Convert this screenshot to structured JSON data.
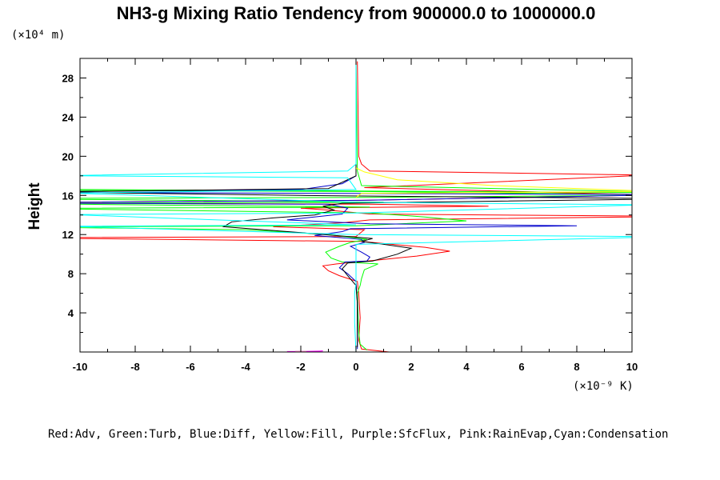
{
  "chart_data": {
    "type": "line",
    "title": "NH3-g Mixing Ratio Tendency from 900000.0 to 1000000.0",
    "ylabel": "Height",
    "x_multiplier_label": "(×10⁻⁹ K)",
    "y_multiplier_label": "(×10⁴ m)",
    "xlim": [
      -10,
      10
    ],
    "ylim": [
      0,
      30
    ],
    "x_ticks": [
      -10,
      -8,
      -6,
      -4,
      -2,
      0,
      2,
      4,
      6,
      8,
      10
    ],
    "y_ticks": [
      4,
      8,
      12,
      16,
      20,
      24,
      28
    ],
    "legend_text": "Red:Adv, Green:Turb, Blue:Diff, Yellow:Fill, Purple:SfcFlux, Pink:RainEvap,Cyan:Condensation",
    "series": [
      {
        "color": "#ff0000",
        "points": [
          [
            1.2,
            0.0
          ],
          [
            0.2,
            0.3
          ],
          [
            0.1,
            1.2
          ],
          [
            0.15,
            3.5
          ],
          [
            0.1,
            6.0
          ],
          [
            0.05,
            7.2
          ],
          [
            -0.6,
            7.8
          ],
          [
            -1.0,
            8.3
          ],
          [
            -1.2,
            8.8
          ],
          [
            -0.7,
            9.0
          ],
          [
            0.8,
            9.4
          ],
          [
            2.2,
            9.8
          ],
          [
            3.4,
            10.3
          ],
          [
            2.5,
            10.7
          ],
          [
            1.3,
            11.0
          ],
          [
            0.2,
            11.3
          ],
          [
            -10,
            11.6
          ],
          [
            -10,
            11.7
          ],
          [
            0,
            11.8
          ],
          [
            0.3,
            12.5
          ],
          [
            -3,
            12.8
          ],
          [
            -0.5,
            13.2
          ],
          [
            0.5,
            13.5
          ],
          [
            10,
            13.8
          ],
          [
            10,
            13.9
          ],
          [
            0.5,
            14.1
          ],
          [
            -1,
            14.5
          ],
          [
            -2,
            14.7
          ],
          [
            4.8,
            14.9
          ],
          [
            0.5,
            15.1
          ],
          [
            -10,
            15.2
          ],
          [
            -10,
            15.3
          ],
          [
            0.2,
            15.5
          ],
          [
            10,
            16.0
          ],
          [
            10,
            16.1
          ],
          [
            0.3,
            16.8
          ],
          [
            10,
            18.0
          ],
          [
            10,
            18.1
          ],
          [
            0.5,
            18.5
          ],
          [
            0.2,
            19.2
          ],
          [
            0.1,
            20.0
          ],
          [
            0.05,
            29.7
          ]
        ]
      },
      {
        "color": "#00ff00",
        "points": [
          [
            0.4,
            0.2
          ],
          [
            0.15,
            0.8
          ],
          [
            0.1,
            2.0
          ],
          [
            0.05,
            6.0
          ],
          [
            0.15,
            6.8
          ],
          [
            0.2,
            7.5
          ],
          [
            0.3,
            8.4
          ],
          [
            0.8,
            9.0
          ],
          [
            -0.5,
            9.2
          ],
          [
            -0.9,
            9.6
          ],
          [
            -1.1,
            10.2
          ],
          [
            -0.6,
            10.8
          ],
          [
            -0.2,
            11.2
          ],
          [
            0.4,
            11.5
          ],
          [
            -1.0,
            12.0
          ],
          [
            -4.0,
            12.5
          ],
          [
            -10,
            12.7
          ],
          [
            -10,
            12.8
          ],
          [
            0.0,
            12.9
          ],
          [
            4.0,
            13.4
          ],
          [
            2.5,
            13.8
          ],
          [
            0.5,
            14.2
          ],
          [
            -10,
            14.6
          ],
          [
            -10,
            14.7
          ],
          [
            0.5,
            14.8
          ],
          [
            -10,
            15.1
          ],
          [
            -10,
            15.2
          ],
          [
            1.0,
            15.3
          ],
          [
            -10,
            15.6
          ],
          [
            -10,
            15.7
          ],
          [
            0.5,
            15.8
          ],
          [
            10,
            16.0
          ],
          [
            10,
            16.1
          ],
          [
            0.3,
            16.4
          ],
          [
            -10,
            16.5
          ],
          [
            -10,
            16.6
          ],
          [
            10,
            16.3
          ],
          [
            10,
            16.4
          ],
          [
            0.2,
            17.0
          ],
          [
            0.05,
            18.5
          ],
          [
            0.0,
            29.7
          ]
        ]
      },
      {
        "color": "#0000cc",
        "points": [
          [
            0.05,
            0.3
          ],
          [
            0.05,
            5.0
          ],
          [
            0.0,
            7.2
          ],
          [
            -0.3,
            8.0
          ],
          [
            -0.6,
            8.6
          ],
          [
            -0.4,
            9.2
          ],
          [
            0.4,
            9.3
          ],
          [
            0.5,
            9.7
          ],
          [
            0.2,
            10.2
          ],
          [
            -0.2,
            10.8
          ],
          [
            0.3,
            11.2
          ],
          [
            0.2,
            11.5
          ],
          [
            -1.5,
            11.9
          ],
          [
            -0.5,
            12.3
          ],
          [
            -0.2,
            12.6
          ],
          [
            8.0,
            12.9
          ],
          [
            0.5,
            13.1
          ],
          [
            -2.5,
            13.5
          ],
          [
            -0.5,
            14.1
          ],
          [
            -0.3,
            14.7
          ],
          [
            -1.0,
            15.1
          ],
          [
            -10,
            15.2
          ],
          [
            -10,
            15.3
          ],
          [
            0.2,
            15.5
          ],
          [
            10,
            16.0
          ],
          [
            10,
            16.1
          ],
          [
            -10,
            16.3
          ],
          [
            -10,
            16.4
          ],
          [
            -2,
            16.6
          ],
          [
            -0.5,
            17.2
          ],
          [
            0.0,
            18.0
          ],
          [
            0.0,
            29.7
          ]
        ]
      },
      {
        "color": "#000000",
        "points": [
          [
            0.05,
            0.5
          ],
          [
            0.05,
            5.0
          ],
          [
            0.0,
            6.8
          ],
          [
            -0.3,
            7.8
          ],
          [
            -0.5,
            8.5
          ],
          [
            -0.3,
            9.1
          ],
          [
            0.6,
            9.3
          ],
          [
            1.5,
            10.0
          ],
          [
            2.0,
            10.6
          ],
          [
            1.0,
            11.0
          ],
          [
            0.2,
            11.3
          ],
          [
            0.6,
            11.6
          ],
          [
            -2.0,
            12.2
          ],
          [
            -4.8,
            12.8
          ],
          [
            -4.5,
            13.3
          ],
          [
            -3,
            13.7
          ],
          [
            -1.5,
            14.0
          ],
          [
            -0.8,
            14.5
          ],
          [
            -1.2,
            14.9
          ],
          [
            -0.5,
            15.2
          ],
          [
            10,
            15.6
          ],
          [
            10,
            15.7
          ],
          [
            -2,
            16.0
          ],
          [
            -10,
            16.3
          ],
          [
            -10,
            16.4
          ],
          [
            -1,
            16.7
          ],
          [
            0.0,
            18.0
          ],
          [
            0.0,
            29.7
          ]
        ]
      },
      {
        "color": "#ffff00",
        "points": [
          [
            0.0,
            18.8
          ],
          [
            0.3,
            18.4
          ],
          [
            1.5,
            17.6
          ],
          [
            5.0,
            17.0
          ],
          [
            10,
            16.5
          ],
          [
            10,
            16.4
          ],
          [
            0.2,
            16.2
          ],
          [
            0.0,
            15.8
          ]
        ]
      },
      {
        "color": "#ff00ff",
        "points": [
          [
            -2.5,
            0.05
          ],
          [
            -1.5,
            0.05
          ],
          [
            -1.2,
            0.1
          ],
          [
            -2.2,
            0.05
          ],
          [
            -2.5,
            0.05
          ]
        ]
      },
      {
        "color": "#ff88cc",
        "points": [
          [
            -2.2,
            0.08
          ],
          [
            -1.8,
            0.08
          ]
        ]
      },
      {
        "color": "#00ffff",
        "points": [
          [
            0.0,
            0.0
          ],
          [
            -0.05,
            3.0
          ],
          [
            -0.05,
            6.0
          ],
          [
            0.0,
            7.0
          ],
          [
            0.0,
            11.0
          ],
          [
            10,
            11.7
          ],
          [
            10,
            11.8
          ],
          [
            0.0,
            12.0
          ],
          [
            -10,
            12.8
          ],
          [
            -10,
            12.85
          ],
          [
            0.0,
            13.0
          ],
          [
            -10,
            14.0
          ],
          [
            -10,
            14.05
          ],
          [
            0.0,
            14.2
          ],
          [
            10,
            15.0
          ],
          [
            10,
            15.05
          ],
          [
            0.0,
            15.3
          ],
          [
            -10,
            16.2
          ],
          [
            -10,
            16.25
          ],
          [
            0.0,
            16.6
          ],
          [
            -0.3,
            17.8
          ],
          [
            -10,
            18.0
          ],
          [
            -10,
            18.05
          ],
          [
            -0.3,
            18.5
          ],
          [
            0.0,
            19.2
          ],
          [
            0.0,
            29.7
          ]
        ]
      }
    ]
  }
}
